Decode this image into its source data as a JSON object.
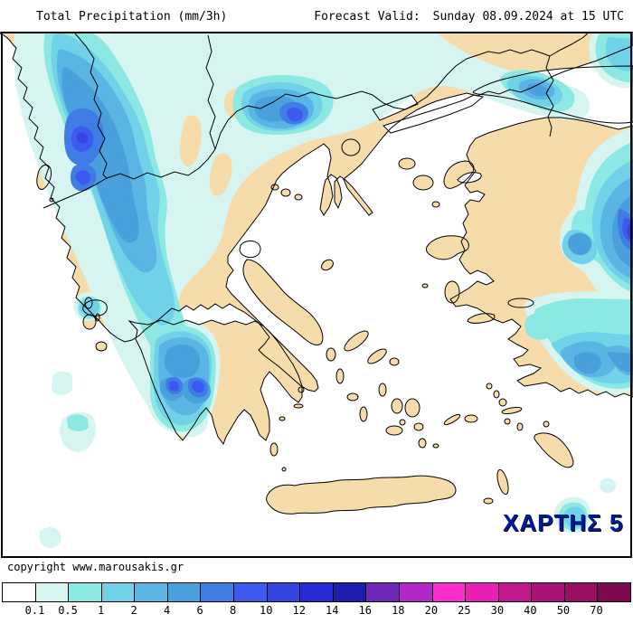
{
  "header": {
    "title": "Total Precipitation (mm/3h)",
    "forecast_label": "Forecast Valid:",
    "forecast_value": "Sunday 08.09.2024 at 15 UTC"
  },
  "map": {
    "series_label": "ΧΑΡΤΗΣ 5",
    "series_label_color": "#001a9e",
    "land_color": "#f6dcaa",
    "sea_color": "#ffffff",
    "coast_color": "#000000"
  },
  "footer": {
    "copyright": "copyright www.marousakis.gr"
  },
  "colorbar": {
    "levels": [
      "0.1",
      "0.5",
      "1",
      "2",
      "4",
      "6",
      "8",
      "10",
      "12",
      "14",
      "16",
      "18",
      "20",
      "25",
      "30",
      "40",
      "50",
      "70"
    ],
    "colors": [
      "#ffffff",
      "#d6f5f0",
      "#8ce8e2",
      "#70d2e9",
      "#5ab4e4",
      "#4a9fdd",
      "#3f7ce6",
      "#3c5af0",
      "#3545e0",
      "#2a2ad4",
      "#1d1db2",
      "#6f28b8",
      "#b228c6",
      "#f92ccc",
      "#e820b4",
      "#c2188e",
      "#aa1278",
      "#990f63",
      "#7d0a4e"
    ]
  }
}
